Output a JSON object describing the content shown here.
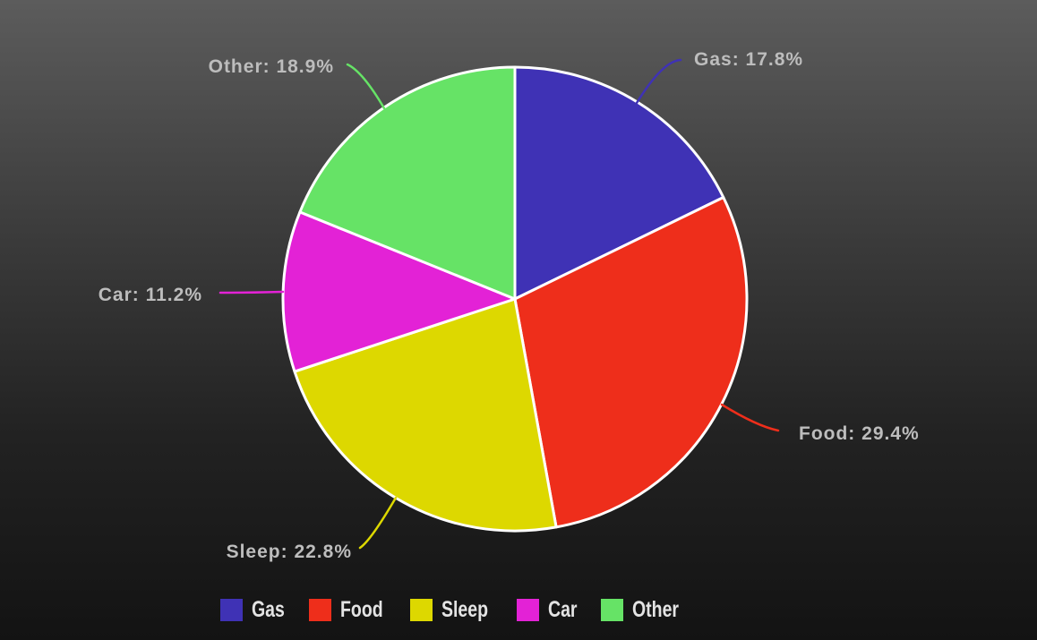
{
  "chart_data": {
    "type": "pie",
    "categories": [
      "Gas",
      "Food",
      "Sleep",
      "Car",
      "Other"
    ],
    "values": [
      17.8,
      29.4,
      22.8,
      11.2,
      18.9
    ],
    "unit": "%",
    "slice_labels": [
      "Gas: 17.8%",
      "Food: 29.4%",
      "Sleep: 22.8%",
      "Car: 11.2%",
      "Other: 18.9%"
    ],
    "legend_labels": [
      "Gas",
      "Food",
      "Sleep",
      "Car",
      "Other"
    ],
    "colors": [
      "#3F32B5",
      "#EE2E1B",
      "#DDD800",
      "#E322D6",
      "#66E366"
    ],
    "slice_border_color": "#FFFFFF",
    "label_text_color": "#BDBDBD",
    "legend_text_color": "#E4E4E4",
    "background_top_color": "#5C5C5C",
    "background_bottom_color": "#131313",
    "legend_position": "bottom",
    "start_angle": "top",
    "direction": "clockwise"
  }
}
